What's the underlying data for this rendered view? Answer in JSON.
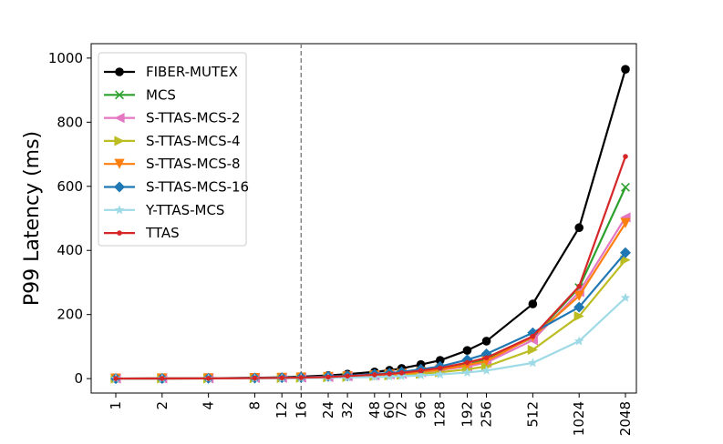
{
  "chart_data": {
    "type": "line",
    "title": "",
    "xlabel": "",
    "ylabel": "P99 Latency (ms)",
    "x_scale": "log2",
    "x": [
      1,
      2,
      4,
      8,
      12,
      16,
      24,
      32,
      48,
      60,
      72,
      96,
      128,
      192,
      256,
      512,
      1024,
      2048
    ],
    "x_tick_labels": [
      "1",
      "2",
      "4",
      "8",
      "12",
      "16",
      "24",
      "32",
      "48",
      "60",
      "72",
      "96",
      "128",
      "192",
      "256",
      "512",
      "1024",
      "2048"
    ],
    "ylim": [
      -45,
      1045
    ],
    "y_ticks": [
      0,
      200,
      400,
      600,
      800,
      1000
    ],
    "y_tick_labels": [
      "0",
      "200",
      "400",
      "600",
      "800",
      "1000"
    ],
    "vline": {
      "x": 16,
      "color": "#808080",
      "style": "dashed"
    },
    "legend_position": "top-left",
    "grid": false,
    "series": [
      {
        "name": "FIBER-MUTEX",
        "color": "#000000",
        "marker": "circle",
        "values": [
          0.3,
          0.6,
          1.2,
          2.5,
          4,
          6,
          10,
          14,
          21,
          26,
          32,
          44,
          57,
          88,
          117,
          233,
          471,
          965
        ]
      },
      {
        "name": "MCS",
        "color": "#2ca02c",
        "marker": "x",
        "values": [
          0.2,
          0.4,
          0.8,
          1.6,
          2.4,
          3.2,
          5,
          7,
          11,
          14,
          16,
          22,
          30,
          44,
          60,
          128,
          284,
          597
        ]
      },
      {
        "name": "S-TTAS-MCS-2",
        "color": "#e377c2",
        "marker": "triangle-left",
        "values": [
          0.2,
          0.4,
          0.8,
          1.6,
          2.4,
          3.2,
          5,
          7,
          10,
          13,
          15,
          20,
          27,
          38,
          50,
          120,
          270,
          503
        ]
      },
      {
        "name": "S-TTAS-MCS-4",
        "color": "#bcbd22",
        "marker": "triangle-right",
        "values": [
          0.2,
          0.3,
          0.6,
          1.2,
          1.8,
          2.5,
          4,
          5,
          8,
          10,
          12,
          15,
          20,
          29,
          38,
          90,
          195,
          370
        ]
      },
      {
        "name": "S-TTAS-MCS-8",
        "color": "#ff7f0e",
        "marker": "triangle-down",
        "values": [
          0.2,
          0.4,
          0.8,
          1.6,
          2.4,
          3.2,
          5,
          7,
          10,
          13,
          15,
          21,
          28,
          42,
          55,
          130,
          258,
          485
        ]
      },
      {
        "name": "S-TTAS-MCS-16",
        "color": "#1f77b4",
        "marker": "diamond",
        "values": [
          0.2,
          0.5,
          1,
          2,
          3,
          4,
          7,
          9,
          14,
          17,
          21,
          29,
          38,
          59,
          77,
          143,
          223,
          393
        ]
      },
      {
        "name": "Y-TTAS-MCS",
        "color": "#9edae5",
        "marker": "star",
        "values": [
          0.1,
          0.2,
          0.4,
          0.8,
          1.2,
          1.6,
          2.5,
          3.5,
          5,
          6,
          7.5,
          10,
          13,
          19,
          25,
          49,
          117,
          252
        ]
      },
      {
        "name": "TTAS",
        "color": "#d62728",
        "marker": "point",
        "values": [
          0.2,
          0.4,
          0.8,
          1.6,
          2.4,
          3.2,
          5,
          8,
          12,
          15,
          18,
          25,
          33,
          50,
          65,
          132,
          288,
          693
        ]
      }
    ]
  }
}
